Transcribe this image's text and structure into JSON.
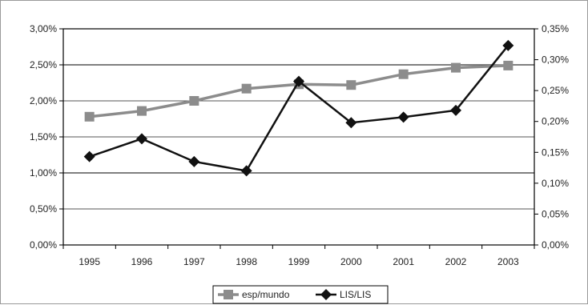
{
  "chart_data": {
    "type": "line",
    "title": "",
    "xlabel": "",
    "ylabel": "",
    "x": [
      "1995",
      "1996",
      "1997",
      "1998",
      "1999",
      "2000",
      "2001",
      "2002",
      "2003"
    ],
    "y_left": {
      "range": [
        0,
        3.0
      ],
      "ticks": [
        "0,00%",
        "0,50%",
        "1,00%",
        "1,50%",
        "2,00%",
        "2,50%",
        "3,00%"
      ]
    },
    "y_right": {
      "range": [
        0,
        0.35
      ],
      "ticks": [
        "0,00%",
        "0,05%",
        "0,10%",
        "0,15%",
        "0,20%",
        "0,25%",
        "0,30%",
        "0,35%"
      ]
    },
    "series": [
      {
        "name": "esp/mundo",
        "axis": "left",
        "color": "#8c8c8c",
        "marker": "square",
        "values": [
          1.78,
          1.86,
          2.0,
          2.17,
          2.23,
          2.22,
          2.37,
          2.46,
          2.49
        ]
      },
      {
        "name": "LIS/LIS",
        "axis": "right",
        "color": "#111111",
        "marker": "diamond",
        "values": [
          0.143,
          0.172,
          0.135,
          0.12,
          0.265,
          0.198,
          0.207,
          0.218,
          0.323
        ]
      }
    ],
    "grid": "horizontal",
    "legend": "bottom"
  }
}
